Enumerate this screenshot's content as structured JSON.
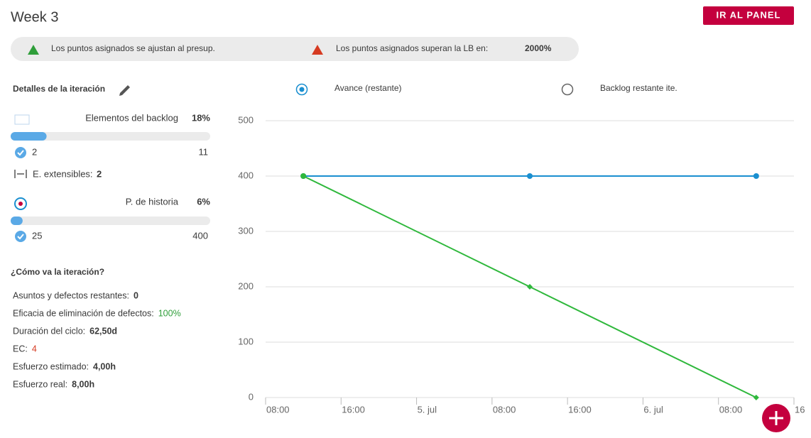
{
  "header": {
    "title": "Week 3",
    "button": "IR AL PANEL"
  },
  "banner": {
    "budget_ok": "Los puntos asignados se ajustan al presup.",
    "over_lb_label": "Los puntos asignados superan la LB en:",
    "over_lb_value": "2000%"
  },
  "details": {
    "title": "Detalles de la iteración",
    "backlog": {
      "label": "Elementos del backlog",
      "percent": 18,
      "percent_label": "18%",
      "done": 2,
      "total": 11,
      "extensible_label": "E. extensibles:",
      "extensible_value": 2
    },
    "story": {
      "label": "P. de historia",
      "percent": 6,
      "percent_label": "6%",
      "done": 25,
      "total": 400
    }
  },
  "status": {
    "title": "¿Cómo va la iteración?",
    "rows": [
      [
        "Asuntos y defectos restantes:",
        "0"
      ],
      [
        "Eficacia de eliminación de defectos:",
        "100%"
      ],
      [
        "Duración del ciclo:",
        "62,50d"
      ],
      [
        "EC:",
        "4"
      ],
      [
        "Esfuerzo estimado:",
        "4,00h"
      ],
      [
        "Esfuerzo real:",
        "8,00h"
      ]
    ]
  },
  "chart_data": {
    "type": "line",
    "options": [
      "Avance (restante)",
      "Backlog restante ite."
    ],
    "selected": 0,
    "x": [
      "07-04 12:00",
      "07-05 12:00",
      "07-06 12:00"
    ],
    "xlim": [
      "07-04 08:00",
      "07-06 16:00"
    ],
    "xticks": [
      {
        "value": "07-04 08:00",
        "label": "08:00"
      },
      {
        "value": "07-04 16:00",
        "label": "16:00"
      },
      {
        "value": "07-05 00:00",
        "label": "5. jul"
      },
      {
        "value": "07-05 08:00",
        "label": "08:00"
      },
      {
        "value": "07-05 16:00",
        "label": "16:00"
      },
      {
        "value": "07-06 00:00",
        "label": "6. jul"
      },
      {
        "value": "07-06 08:00",
        "label": "08:00"
      },
      {
        "value": "07-06 16:00",
        "label": "16"
      }
    ],
    "ylim": [
      0,
      500
    ],
    "yticks": [
      0,
      100,
      200,
      300,
      400,
      500
    ],
    "grid": true,
    "series": [
      {
        "color": "#1a8fd0",
        "values": [
          400,
          400,
          400
        ]
      },
      {
        "color": "#2fb83c",
        "values": [
          400,
          200,
          0
        ]
      }
    ]
  }
}
